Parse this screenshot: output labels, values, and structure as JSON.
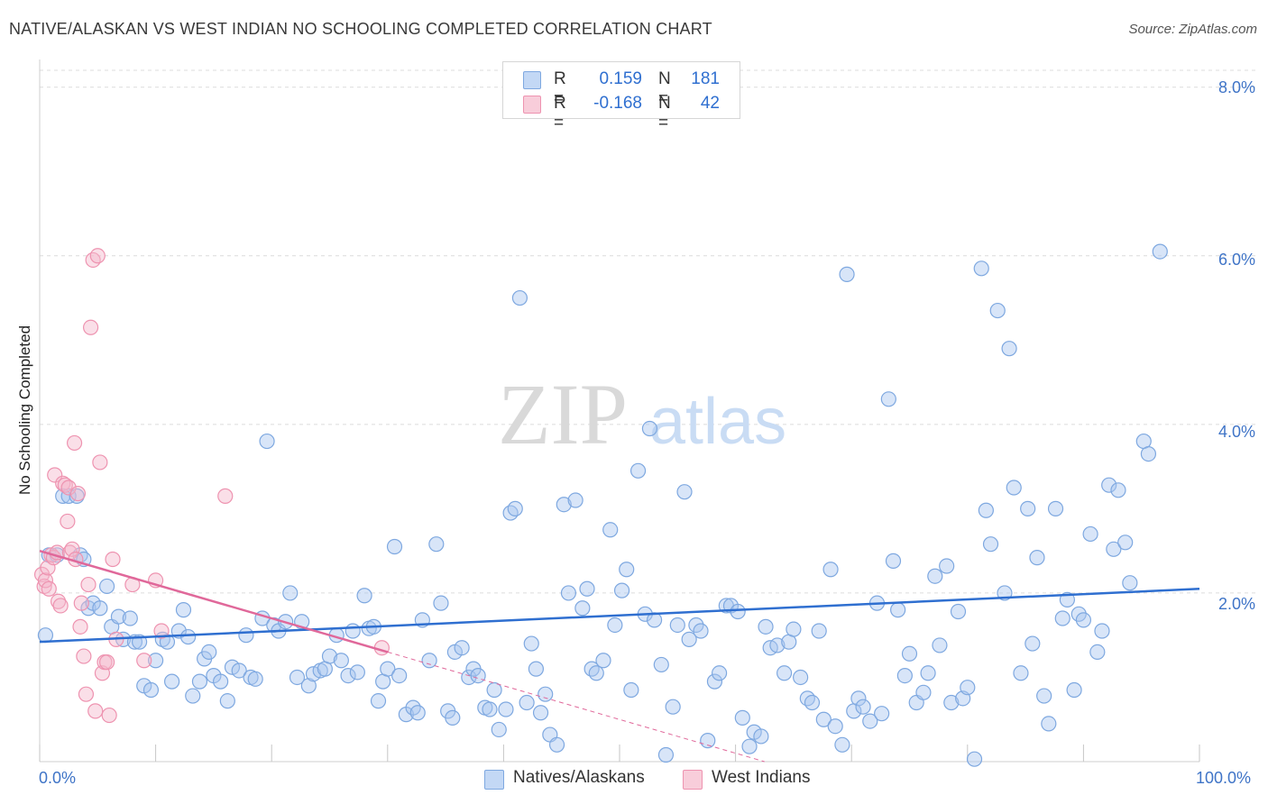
{
  "header": {
    "title": "NATIVE/ALASKAN VS WEST INDIAN NO SCHOOLING COMPLETED CORRELATION CHART",
    "source": "Source: ZipAtlas.com"
  },
  "legend_stats": [
    {
      "r_label": "R =",
      "r_value": "0.159",
      "n_label": "N =",
      "n_value": "181"
    },
    {
      "r_label": "R =",
      "r_value": "-0.168",
      "n_label": "N =",
      "n_value": "42"
    }
  ],
  "watermark": {
    "part1": "ZIP",
    "part2": "atlas"
  },
  "colors": {
    "native_fill": "#a9c6ef",
    "native_stroke": "#7ea8e0",
    "native_line": "#2f6fd0",
    "west_fill": "#f5b8cb",
    "west_stroke": "#ee93b0",
    "west_line": "#e0689a",
    "tick_label": "#3f74c7",
    "grid": "#dcdcdc"
  },
  "chart_data": {
    "type": "scatter",
    "title": "NATIVE/ALASKAN VS WEST INDIAN NO SCHOOLING COMPLETED CORRELATION CHART",
    "xlabel": "",
    "ylabel": "No Schooling Completed",
    "xlim": [
      0,
      100
    ],
    "ylim": [
      0,
      8.2
    ],
    "x_tick_labels": [
      {
        "value": 0,
        "label": "0.0%"
      },
      {
        "value": 100,
        "label": "100.0%"
      }
    ],
    "y_tick_labels": [
      {
        "value": 2,
        "label": "2.0%"
      },
      {
        "value": 4,
        "label": "4.0%"
      },
      {
        "value": 6,
        "label": "6.0%"
      },
      {
        "value": 8,
        "label": "8.0%"
      }
    ],
    "grid": "horizontal dashed",
    "legend": "top-center",
    "series": [
      {
        "name": "Natives/Alaskans",
        "R": 0.159,
        "N": 181,
        "trend": {
          "x": [
            0,
            100
          ],
          "y": [
            1.42,
            2.05
          ]
        },
        "points": [
          [
            0.5,
            1.5
          ],
          [
            0.8,
            2.45
          ],
          [
            1.5,
            2.45
          ],
          [
            2.0,
            3.15
          ],
          [
            2.5,
            3.15
          ],
          [
            3.2,
            3.15
          ],
          [
            3.5,
            2.45
          ],
          [
            3.8,
            2.4
          ],
          [
            4.2,
            1.82
          ],
          [
            4.6,
            1.88
          ],
          [
            5.2,
            1.82
          ],
          [
            5.8,
            2.08
          ],
          [
            6.2,
            1.6
          ],
          [
            6.8,
            1.72
          ],
          [
            7.2,
            1.45
          ],
          [
            7.8,
            1.7
          ],
          [
            8.2,
            1.42
          ],
          [
            8.6,
            1.42
          ],
          [
            9.0,
            0.9
          ],
          [
            9.6,
            0.85
          ],
          [
            10.0,
            1.2
          ],
          [
            10.6,
            1.45
          ],
          [
            11.0,
            1.42
          ],
          [
            11.4,
            0.95
          ],
          [
            12.0,
            1.55
          ],
          [
            12.4,
            1.8
          ],
          [
            12.8,
            1.48
          ],
          [
            13.2,
            0.78
          ],
          [
            13.8,
            0.95
          ],
          [
            14.2,
            1.22
          ],
          [
            14.6,
            1.3
          ],
          [
            15.0,
            1.02
          ],
          [
            15.6,
            0.95
          ],
          [
            16.2,
            0.72
          ],
          [
            16.6,
            1.12
          ],
          [
            17.2,
            1.08
          ],
          [
            17.8,
            1.5
          ],
          [
            18.2,
            1.0
          ],
          [
            18.6,
            0.98
          ],
          [
            19.2,
            1.7
          ],
          [
            19.6,
            3.8
          ],
          [
            20.2,
            1.62
          ],
          [
            20.6,
            1.55
          ],
          [
            21.2,
            1.66
          ],
          [
            21.6,
            2.0
          ],
          [
            22.2,
            1.0
          ],
          [
            22.6,
            1.66
          ],
          [
            23.2,
            0.9
          ],
          [
            23.6,
            1.04
          ],
          [
            24.2,
            1.08
          ],
          [
            24.6,
            1.1
          ],
          [
            25.0,
            1.25
          ],
          [
            25.6,
            1.5
          ],
          [
            26.0,
            1.2
          ],
          [
            26.6,
            1.02
          ],
          [
            27.0,
            1.55
          ],
          [
            27.4,
            1.06
          ],
          [
            28.0,
            1.97
          ],
          [
            28.4,
            1.58
          ],
          [
            28.8,
            1.6
          ],
          [
            29.2,
            0.72
          ],
          [
            29.6,
            0.95
          ],
          [
            30.0,
            1.1
          ],
          [
            30.6,
            2.55
          ],
          [
            31.0,
            1.02
          ],
          [
            31.6,
            0.56
          ],
          [
            32.2,
            0.64
          ],
          [
            32.6,
            0.58
          ],
          [
            33.0,
            1.68
          ],
          [
            33.6,
            1.2
          ],
          [
            34.2,
            2.58
          ],
          [
            34.6,
            1.88
          ],
          [
            35.2,
            0.6
          ],
          [
            35.6,
            0.52
          ],
          [
            35.8,
            1.3
          ],
          [
            36.4,
            1.35
          ],
          [
            37.0,
            1.0
          ],
          [
            37.4,
            1.1
          ],
          [
            37.8,
            1.02
          ],
          [
            38.4,
            0.64
          ],
          [
            38.8,
            0.62
          ],
          [
            39.2,
            0.85
          ],
          [
            39.6,
            0.38
          ],
          [
            40.2,
            0.62
          ],
          [
            40.6,
            2.95
          ],
          [
            41.0,
            3.0
          ],
          [
            41.4,
            5.5
          ],
          [
            42.0,
            0.7
          ],
          [
            42.4,
            1.4
          ],
          [
            42.8,
            1.1
          ],
          [
            43.2,
            0.58
          ],
          [
            43.6,
            0.8
          ],
          [
            44.0,
            0.32
          ],
          [
            44.6,
            0.2
          ],
          [
            45.2,
            3.05
          ],
          [
            45.6,
            2.0
          ],
          [
            46.2,
            3.1
          ],
          [
            46.8,
            1.82
          ],
          [
            47.2,
            2.05
          ],
          [
            47.6,
            1.1
          ],
          [
            48.0,
            1.05
          ],
          [
            48.6,
            1.2
          ],
          [
            49.2,
            2.75
          ],
          [
            49.6,
            1.62
          ],
          [
            50.2,
            2.03
          ],
          [
            50.6,
            2.28
          ],
          [
            51.0,
            0.85
          ],
          [
            51.6,
            3.45
          ],
          [
            52.2,
            1.75
          ],
          [
            52.6,
            3.95
          ],
          [
            53.0,
            1.68
          ],
          [
            53.6,
            1.15
          ],
          [
            54.0,
            0.08
          ],
          [
            54.6,
            0.65
          ],
          [
            55.0,
            1.62
          ],
          [
            55.6,
            3.2
          ],
          [
            56.0,
            1.45
          ],
          [
            56.6,
            1.62
          ],
          [
            57.0,
            1.55
          ],
          [
            57.6,
            0.25
          ],
          [
            58.2,
            0.95
          ],
          [
            58.6,
            1.05
          ],
          [
            59.2,
            1.85
          ],
          [
            59.6,
            1.85
          ],
          [
            60.2,
            1.78
          ],
          [
            60.6,
            0.52
          ],
          [
            61.2,
            0.18
          ],
          [
            61.6,
            0.35
          ],
          [
            62.2,
            0.3
          ],
          [
            62.6,
            1.6
          ],
          [
            63.0,
            1.35
          ],
          [
            63.6,
            1.38
          ],
          [
            64.2,
            1.05
          ],
          [
            64.6,
            1.42
          ],
          [
            65.0,
            1.57
          ],
          [
            65.6,
            1.0
          ],
          [
            66.2,
            0.75
          ],
          [
            66.6,
            0.7
          ],
          [
            67.2,
            1.55
          ],
          [
            67.6,
            0.5
          ],
          [
            68.2,
            2.28
          ],
          [
            68.6,
            0.42
          ],
          [
            69.2,
            0.2
          ],
          [
            69.6,
            5.78
          ],
          [
            70.2,
            0.6
          ],
          [
            70.6,
            0.75
          ],
          [
            71.0,
            0.65
          ],
          [
            71.6,
            0.48
          ],
          [
            72.2,
            1.88
          ],
          [
            72.6,
            0.57
          ],
          [
            73.2,
            4.3
          ],
          [
            73.6,
            2.38
          ],
          [
            74.0,
            1.8
          ],
          [
            74.6,
            1.02
          ],
          [
            75.0,
            1.28
          ],
          [
            75.6,
            0.7
          ],
          [
            76.2,
            0.82
          ],
          [
            76.6,
            1.05
          ],
          [
            77.2,
            2.2
          ],
          [
            77.6,
            1.38
          ],
          [
            78.2,
            2.32
          ],
          [
            78.6,
            0.7
          ],
          [
            79.2,
            1.78
          ],
          [
            79.6,
            0.75
          ],
          [
            80.0,
            0.88
          ],
          [
            80.6,
            0.03
          ],
          [
            81.2,
            5.85
          ],
          [
            81.6,
            2.98
          ],
          [
            82.0,
            2.58
          ],
          [
            82.6,
            5.35
          ],
          [
            83.2,
            2.0
          ],
          [
            83.6,
            4.9
          ],
          [
            84.0,
            3.25
          ],
          [
            84.6,
            1.05
          ],
          [
            85.2,
            3.0
          ],
          [
            85.6,
            1.4
          ],
          [
            86.0,
            2.42
          ],
          [
            86.6,
            0.78
          ],
          [
            87.0,
            0.45
          ],
          [
            87.6,
            3.0
          ],
          [
            88.2,
            1.7
          ],
          [
            88.6,
            1.92
          ],
          [
            89.2,
            0.85
          ],
          [
            89.6,
            1.75
          ],
          [
            90.0,
            1.68
          ],
          [
            90.6,
            2.7
          ],
          [
            91.2,
            1.3
          ],
          [
            91.6,
            1.55
          ],
          [
            92.2,
            3.28
          ],
          [
            92.6,
            2.52
          ],
          [
            93.0,
            3.22
          ],
          [
            93.6,
            2.6
          ],
          [
            94.0,
            2.12
          ],
          [
            95.2,
            3.8
          ],
          [
            95.6,
            3.65
          ],
          [
            96.6,
            6.05
          ]
        ]
      },
      {
        "name": "West Indians",
        "R": -0.168,
        "N": 42,
        "trend": {
          "x": [
            0,
            30
          ],
          "y": [
            2.5,
            1.3
          ]
        },
        "trend_extension": {
          "x": [
            30,
            80
          ],
          "y": [
            1.3,
            -0.7
          ]
        },
        "points": [
          [
            0.2,
            2.22
          ],
          [
            0.4,
            2.08
          ],
          [
            0.5,
            2.15
          ],
          [
            0.7,
            2.3
          ],
          [
            0.8,
            2.05
          ],
          [
            1.0,
            2.45
          ],
          [
            1.2,
            2.42
          ],
          [
            1.3,
            3.4
          ],
          [
            1.5,
            2.48
          ],
          [
            1.6,
            1.9
          ],
          [
            1.8,
            1.85
          ],
          [
            2.0,
            3.3
          ],
          [
            2.2,
            3.28
          ],
          [
            2.4,
            2.85
          ],
          [
            2.5,
            3.25
          ],
          [
            2.6,
            2.48
          ],
          [
            2.8,
            2.52
          ],
          [
            3.0,
            3.78
          ],
          [
            3.1,
            2.4
          ],
          [
            3.3,
            3.18
          ],
          [
            3.5,
            1.6
          ],
          [
            3.6,
            1.88
          ],
          [
            3.8,
            1.25
          ],
          [
            4.0,
            0.8
          ],
          [
            4.2,
            2.1
          ],
          [
            4.4,
            5.15
          ],
          [
            4.6,
            5.95
          ],
          [
            4.8,
            0.6
          ],
          [
            5.0,
            6.0
          ],
          [
            5.2,
            3.55
          ],
          [
            5.4,
            1.05
          ],
          [
            5.6,
            1.18
          ],
          [
            5.8,
            1.18
          ],
          [
            6.0,
            0.55
          ],
          [
            6.3,
            2.4
          ],
          [
            6.6,
            1.45
          ],
          [
            8.0,
            2.1
          ],
          [
            9.0,
            1.2
          ],
          [
            10.0,
            2.15
          ],
          [
            10.5,
            1.55
          ],
          [
            16.0,
            3.15
          ],
          [
            29.5,
            1.35
          ]
        ]
      }
    ]
  },
  "bottom_legend": [
    {
      "label": "Natives/Alaskans"
    },
    {
      "label": "West Indians"
    }
  ]
}
